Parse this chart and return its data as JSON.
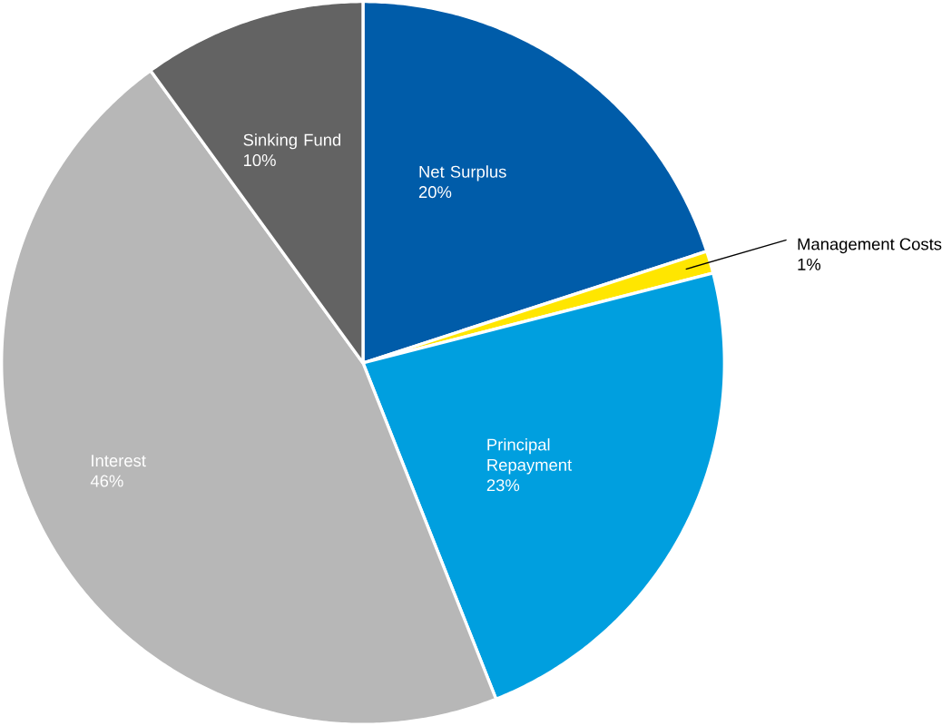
{
  "chart_data": {
    "type": "pie",
    "categories": [
      "Net Surplus",
      "Management Costs",
      "Principal Repayment",
      "Interest",
      "Sinking Fund"
    ],
    "values": [
      20,
      1,
      23,
      46,
      10
    ],
    "value_labels": [
      "20%",
      "1%",
      "23%",
      "46%",
      "10%"
    ],
    "colors": [
      "#005ca9",
      "#ffe600",
      "#009fdf",
      "#b7b7b7",
      "#636363"
    ]
  }
}
